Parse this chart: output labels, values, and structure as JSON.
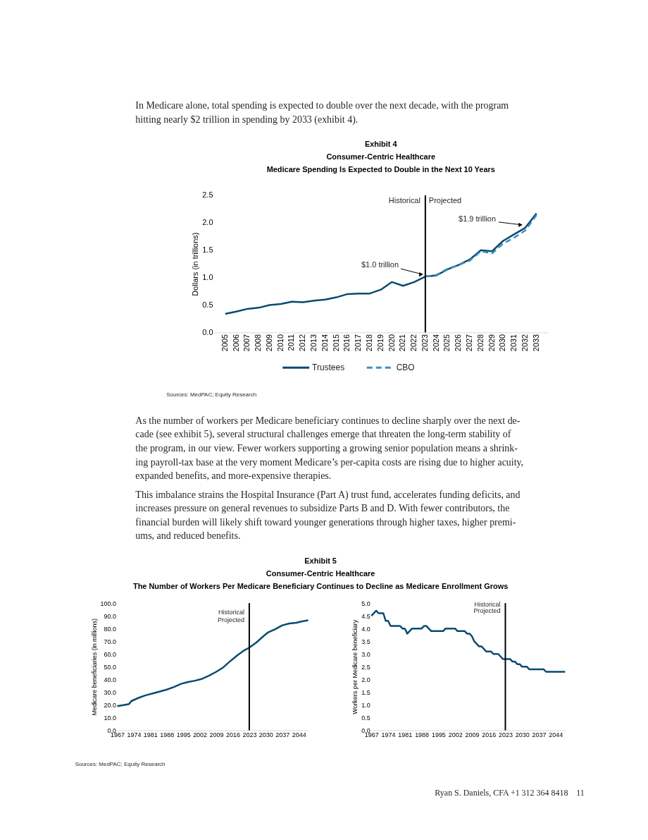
{
  "chart_data": [
    {
      "type": "other",
      "annotations": [
        "In Medicare alone, total spending is expected to double over the next decade, with the program\nhitting nearly $2 trillion in spending by 2033 (exhibit 4)."
      ]
    },
    {
      "type": "line",
      "title": "Exhibit 4\nConsumer-Centric Healthcare\nMedicare Spending Is Expected to Double in the Next 10 Years",
      "ylabel": "Dollars (in trillions)",
      "categories": [
        "2005",
        "2006",
        "2007",
        "2008",
        "2009",
        "2010",
        "2011",
        "2012",
        "2013",
        "2014",
        "2015",
        "2016",
        "2017",
        "2018",
        "2019",
        "2020",
        "2021",
        "2022",
        "2023",
        "2024",
        "2025",
        "2026",
        "2027",
        "2028",
        "2029",
        "2030",
        "2031",
        "2032",
        "2033"
      ],
      "series": [
        {
          "name": "Trustees",
          "color": "#0b4a6f",
          "line_style": "solid",
          "values": [
            0.34,
            0.38,
            0.43,
            0.45,
            0.5,
            0.52,
            0.56,
            0.55,
            0.58,
            0.6,
            0.64,
            0.7,
            0.71,
            0.71,
            0.78,
            0.92,
            0.85,
            0.92,
            1.02,
            1.04,
            1.15,
            1.23,
            1.33,
            1.5,
            1.48,
            1.67,
            1.79,
            1.91,
            2.17
          ]
        },
        {
          "name": "CBO",
          "color": "#3f8fbd",
          "line_style": "dashed",
          "values": [
            null,
            null,
            null,
            null,
            null,
            null,
            null,
            null,
            null,
            null,
            null,
            null,
            null,
            null,
            null,
            null,
            null,
            null,
            1.02,
            1.05,
            1.16,
            1.23,
            1.31,
            1.48,
            1.44,
            1.62,
            1.73,
            1.86,
            2.14
          ]
        }
      ],
      "ylim": [
        0,
        2.5
      ],
      "yticks": [
        {
          "value": 0,
          "label": "0.0"
        },
        0.5,
        {
          "value": 1,
          "label": "1.0"
        },
        1.5,
        {
          "value": 2,
          "label": "2.0"
        },
        2.5
      ],
      "ref_lines": [
        {
          "axis": "x",
          "value": "2023",
          "label": "Historical"
        }
      ],
      "annotations": [
        {
          "text": "Projected",
          "x": "2023",
          "y": 2.4
        },
        {
          "text": "$1.0 trillion",
          "x": "2023",
          "y": 1.02
        },
        {
          "text": "$1.9 trillion",
          "x": "2032",
          "y": 1.91
        },
        "Sources: MedPAC; Equity Research"
      ],
      "legend": "bottom",
      "grid": false
    },
    {
      "type": "other",
      "annotations": [
        "As the number of workers per Medicare beneficiary continues to decline sharply over the next de-\ncade (see exhibit 5), several structural challenges emerge that threaten the long-term stability of\nthe program, in our view. Fewer workers supporting a growing senior population means a shrink-\ning payroll-tax base at the very moment Medicare’s per-capita costs are rising due to higher acuity,\nexpanded benefits, and more-expensive therapies.",
        "This imbalance strains the Hospital Insurance (Part A) trust fund, accelerates funding deficits, and\nincreases pressure on general revenues to subsidize Parts B and D. With fewer contributors, the\nfinancial burden will likely shift toward younger generations through higher taxes, higher premi-\nums, and reduced benefits."
      ]
    },
    {
      "type": "line",
      "title": "Exhibit 5\nConsumer-Centric Healthcare\nThe Number of Workers Per Medicare Beneficiary Continues to Decline as Medicare Enrollment Grows",
      "ylabel": "Medicare beneficiaries (in millions)",
      "x": [
        1967,
        1970,
        1972,
        1973,
        1976,
        1979,
        1982,
        1985,
        1988,
        1991,
        1994,
        1997,
        2000,
        2003,
        2006,
        2009,
        2012,
        2015,
        2018,
        2021,
        2023,
        2026,
        2029,
        2031,
        2034,
        2037,
        2040,
        2043,
        2045,
        2048
      ],
      "series": [
        {
          "color": "#0b4a6f",
          "values": [
            19,
            20,
            20.7,
            23,
            25.5,
            27.5,
            29,
            30.5,
            32,
            34,
            36.5,
            38,
            39,
            40.5,
            43,
            46,
            49.5,
            54.5,
            59,
            63,
            65,
            69,
            74,
            77,
            79.5,
            82.5,
            84,
            84.5,
            85.5,
            86.5
          ]
        }
      ],
      "xlim": [
        1967,
        2048
      ],
      "xticks": [
        1967,
        1974,
        1981,
        1988,
        1995,
        2002,
        2009,
        2016,
        2023,
        2030,
        2037,
        2044
      ],
      "ylim": [
        0,
        100
      ],
      "yticks": [
        {
          "value": 0,
          "label": "0.0"
        },
        {
          "value": 10,
          "label": "10.0"
        },
        {
          "value": 20,
          "label": "20.0"
        },
        {
          "value": 30,
          "label": "30.0"
        },
        {
          "value": 40,
          "label": "40.0"
        },
        {
          "value": 50,
          "label": "50.0"
        },
        {
          "value": 60,
          "label": "60.0"
        },
        {
          "value": 70,
          "label": "70.0"
        },
        {
          "value": 80,
          "label": "80.0"
        },
        {
          "value": 90,
          "label": "90.0"
        },
        {
          "value": 100,
          "label": "100.0"
        }
      ],
      "ref_lines": [
        {
          "axis": "x",
          "value": 2023,
          "label": "Historical"
        }
      ],
      "annotations": [
        {
          "text": "Projected",
          "x": 2023,
          "y": 87
        },
        "Sources: MedPAC; Equity Research"
      ],
      "grid": false
    },
    {
      "type": "line",
      "ylabel": "Workers per Medicare beneficiary",
      "x": [
        1967,
        1969,
        1970,
        1972,
        1973,
        1974,
        1975,
        1979,
        1980,
        1981,
        1982,
        1984,
        1988,
        1989,
        1990,
        1992,
        1997,
        1998,
        2002,
        2003,
        2006,
        2007,
        2008,
        2009,
        2010,
        2011,
        2012,
        2013,
        2015,
        2017,
        2018,
        2020,
        2022,
        2025,
        2026,
        2027,
        2028,
        2029,
        2030,
        2032,
        2033,
        2039,
        2040,
        2048
      ],
      "series": [
        {
          "color": "#0b4a6f",
          "values": [
            4.5,
            4.7,
            4.6,
            4.6,
            4.3,
            4.3,
            4.1,
            4.1,
            4.0,
            4.0,
            3.8,
            4.0,
            4.0,
            4.1,
            4.1,
            3.9,
            3.9,
            4.0,
            4.0,
            3.9,
            3.9,
            3.8,
            3.8,
            3.7,
            3.5,
            3.4,
            3.3,
            3.3,
            3.1,
            3.1,
            3.0,
            3.0,
            2.8,
            2.8,
            2.7,
            2.7,
            2.6,
            2.6,
            2.5,
            2.5,
            2.4,
            2.4,
            2.3,
            2.3
          ]
        }
      ],
      "xlim": [
        1967,
        2048
      ],
      "xticks": [
        1967,
        1974,
        1981,
        1988,
        1995,
        2002,
        2009,
        2016,
        2023,
        2030,
        2037,
        2044
      ],
      "ylim": [
        0,
        5
      ],
      "yticks": [
        {
          "value": 0,
          "label": "0.0"
        },
        0.5,
        {
          "value": 1,
          "label": "1.0"
        },
        1.5,
        {
          "value": 2,
          "label": "2.0"
        },
        2.5,
        {
          "value": 3,
          "label": "3.0"
        },
        3.5,
        {
          "value": 4,
          "label": "4.0"
        },
        4.5,
        {
          "value": 5,
          "label": "5.0"
        }
      ],
      "ref_lines": [
        {
          "axis": "x",
          "value": 2023,
          "label": "Historical"
        }
      ],
      "annotations": [
        {
          "text": "Projected",
          "x": 2023,
          "y": 4.7
        }
      ],
      "grid": false
    },
    {
      "type": "other",
      "annotations": [
        "Ryan S. Daniels, CFA  +1 312 364 8418",
        "11"
      ]
    }
  ]
}
